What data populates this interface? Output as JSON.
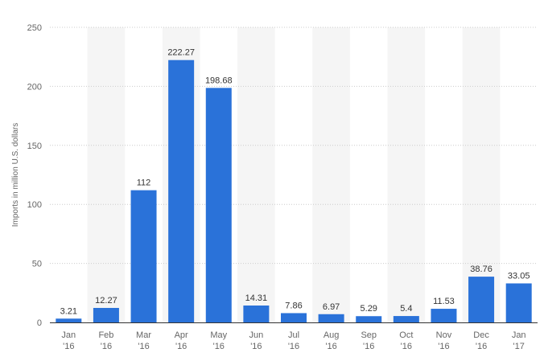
{
  "chart_data": {
    "type": "bar",
    "title": "",
    "xlabel": "",
    "ylabel": "Imports in million U.S. dollars",
    "ylim": [
      0,
      250
    ],
    "yticks": [
      0,
      50,
      100,
      150,
      200,
      250
    ],
    "grid": true,
    "categories": [
      [
        "Jan",
        "'16"
      ],
      [
        "Feb",
        "'16"
      ],
      [
        "Mar",
        "'16"
      ],
      [
        "Apr",
        "'16"
      ],
      [
        "May",
        "'16"
      ],
      [
        "Jun",
        "'16"
      ],
      [
        "Jul",
        "'16"
      ],
      [
        "Aug",
        "'16"
      ],
      [
        "Sep",
        "'16"
      ],
      [
        "Oct",
        "'16"
      ],
      [
        "Nov",
        "'16"
      ],
      [
        "Dec",
        "'16"
      ],
      [
        "Jan",
        "'17"
      ]
    ],
    "values": [
      3.21,
      12.27,
      112,
      222.27,
      198.68,
      14.31,
      7.86,
      6.97,
      5.29,
      5.4,
      11.53,
      38.76,
      33.05
    ],
    "labels": [
      "3.21",
      "12.27",
      "112",
      "222.27",
      "198.68",
      "14.31",
      "7.86",
      "6.97",
      "5.29",
      "5.4",
      "11.53",
      "38.76",
      "33.05"
    ],
    "colors": {
      "bar": "#2a72d9",
      "band": "#f5f5f5",
      "grid": "#cccccc",
      "axis": "#333333"
    }
  }
}
